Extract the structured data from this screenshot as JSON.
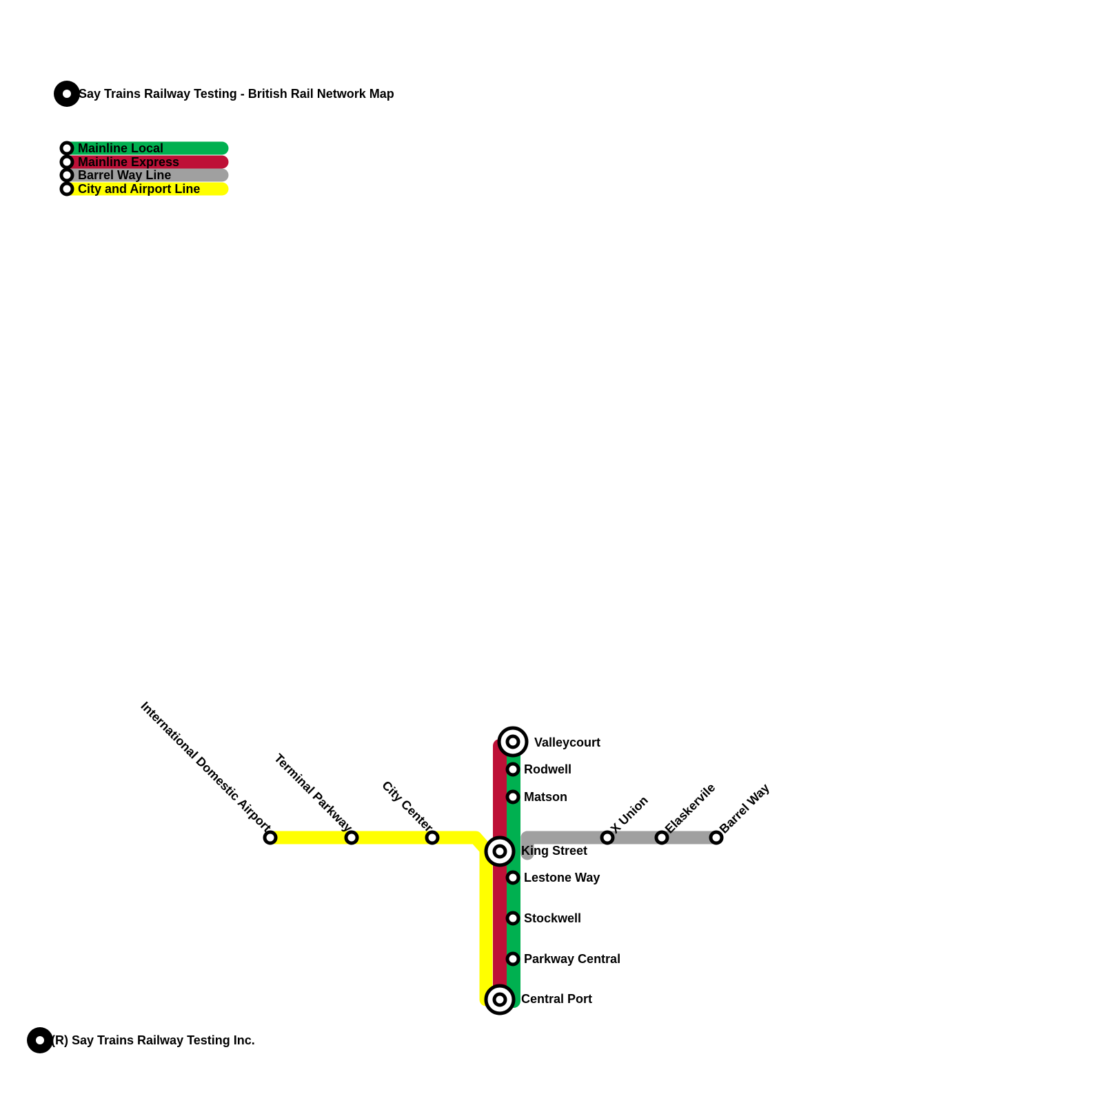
{
  "title": "Say Trains Railway Testing - British Rail Network Map",
  "footer": "(R) Say Trains Railway Testing Inc.",
  "colors": {
    "mainline_local": "#00b050",
    "mainline_express": "#be1037",
    "barrel_way": "#a0a0a0",
    "city_airport": "#ffff00"
  },
  "legend": [
    {
      "label": "Mainline Local",
      "color": "#00b050"
    },
    {
      "label": "Mainline Express",
      "color": "#be1037"
    },
    {
      "label": "Barrel Way Line",
      "color": "#a0a0a0"
    },
    {
      "label": "City and Airport Line",
      "color": "#ffff00"
    }
  ],
  "stations": {
    "valleycourt": "Valleycourt",
    "rodwell": "Rodwell",
    "matson": "Matson",
    "king_street": "King Street",
    "lestone_way": "Lestone Way",
    "stockwell": "Stockwell",
    "parkway_central": "Parkway Central",
    "central_port": "Central Port",
    "airport": "International Domestic Airport",
    "terminal_parkway": "Terminal Parkway",
    "city_center": "City Center",
    "x_union": "X Union",
    "elaskervile": "Elaskervile",
    "barrel_way": "Barrel Way"
  }
}
